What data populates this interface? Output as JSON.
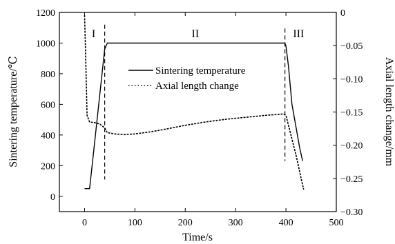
{
  "chart_data": {
    "type": "line",
    "xlabel": "Time/s",
    "ylabel_left": "Sintering temperature/℃",
    "ylabel_right": "Axial length change/mm",
    "xlim": [
      -50,
      500
    ],
    "ylim_left": [
      -100,
      1200
    ],
    "ylim_right": [
      -0.3,
      0
    ],
    "x_ticks": [
      0,
      100,
      200,
      300,
      400,
      500
    ],
    "x_tick_labels": [
      "0",
      "100",
      "200",
      "300",
      "400",
      "500"
    ],
    "y_left_ticks": [
      0,
      200,
      400,
      600,
      800,
      1000,
      1200
    ],
    "y_left_tick_labels": [
      "0",
      "200",
      "400",
      "600",
      "800",
      "1000",
      "1200"
    ],
    "y_right_ticks": [
      -0.3,
      -0.25,
      -0.2,
      -0.15,
      -0.1,
      -0.05,
      0
    ],
    "y_right_tick_labels": [
      "−0.30",
      "−0.25",
      "−0.20",
      "−0.15",
      "−0.10",
      "−0.05",
      "0"
    ],
    "grid": false,
    "legend_position": "top-right-center",
    "series": [
      {
        "name": "Sintering temperature",
        "axis": "left",
        "style": "solid",
        "x": [
          0,
          10,
          15,
          40,
          45,
          100,
          200,
          300,
          398,
          400,
          405,
          412,
          420,
          427,
          433
        ],
        "y": [
          50,
          50,
          200,
          960,
          1000,
          1000,
          1000,
          1000,
          1000,
          980,
          850,
          600,
          450,
          320,
          230
        ]
      },
      {
        "name": "Axial length change",
        "axis": "right",
        "style": "dotted",
        "x": [
          0,
          2,
          5,
          10,
          20,
          30,
          40,
          45,
          60,
          80,
          100,
          130,
          160,
          200,
          240,
          280,
          320,
          360,
          395,
          400,
          405,
          410,
          415,
          420,
          425,
          430,
          435
        ],
        "y": [
          -0.005,
          -0.06,
          -0.155,
          -0.165,
          -0.166,
          -0.168,
          -0.174,
          -0.181,
          -0.183,
          -0.184,
          -0.183,
          -0.18,
          -0.176,
          -0.17,
          -0.165,
          -0.161,
          -0.158,
          -0.155,
          -0.153,
          -0.155,
          -0.17,
          -0.185,
          -0.2,
          -0.215,
          -0.232,
          -0.25,
          -0.266
        ]
      }
    ],
    "phase_boundaries": [
      {
        "x": 40,
        "y_top": 1120,
        "y_bottom": 110
      },
      {
        "x": 398,
        "y_top": 1095,
        "y_bottom": 230
      }
    ],
    "regions": [
      {
        "label": "I",
        "x": 18
      },
      {
        "label": "II",
        "x": 220
      },
      {
        "label": "III",
        "x": 425
      }
    ]
  }
}
